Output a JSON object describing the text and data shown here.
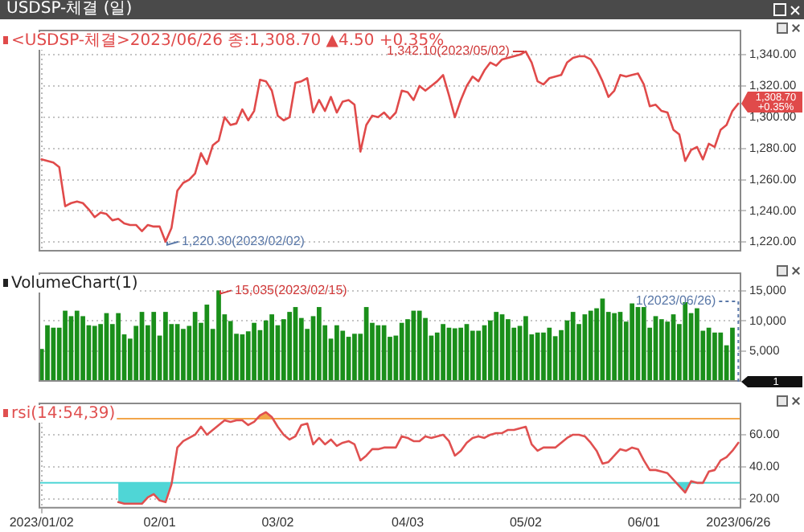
{
  "chart_data": [
    {
      "type": "line",
      "title": "USDSP-체결 (일)",
      "subtitle": "<USDSP-체결>2023/06/26 종:1,308.70 ▲4.50 +0.35%",
      "categories": [
        "2023/01/02",
        null,
        null,
        null,
        null,
        null,
        null,
        null,
        null,
        null,
        null,
        null,
        null,
        null,
        null,
        null,
        null,
        null,
        null,
        null,
        "02/01",
        null,
        null,
        null,
        null,
        null,
        null,
        null,
        null,
        null,
        null,
        null,
        null,
        null,
        null,
        null,
        null,
        null,
        null,
        null,
        "03/02",
        null,
        null,
        null,
        null,
        null,
        null,
        null,
        null,
        null,
        null,
        null,
        null,
        null,
        null,
        null,
        null,
        null,
        null,
        null,
        null,
        null,
        "04/03",
        null,
        null,
        null,
        null,
        null,
        null,
        null,
        null,
        null,
        null,
        null,
        null,
        null,
        null,
        null,
        null,
        null,
        null,
        null,
        "05/02",
        null,
        null,
        null,
        null,
        null,
        null,
        null,
        null,
        null,
        null,
        null,
        null,
        null,
        null,
        null,
        null,
        null,
        null,
        null,
        "06/01",
        null,
        null,
        null,
        null,
        null,
        null,
        null,
        null,
        null,
        null,
        null,
        null,
        null,
        null,
        null,
        "2023/06/26"
      ],
      "series": [
        {
          "color": "#e04a4a",
          "values": [
            1273,
            1272,
            1271,
            1268,
            1243,
            1245,
            1246,
            1245,
            1241,
            1236,
            1239,
            1238,
            1234,
            1235,
            1232,
            1231,
            1231,
            1227,
            1231,
            1230,
            1230,
            1220.3,
            1229,
            1253,
            1258,
            1260,
            1264,
            1277,
            1270,
            1282,
            1285,
            1300,
            1295,
            1296,
            1305,
            1298,
            1304,
            1324,
            1323,
            1317,
            1301,
            1298,
            1300,
            1322,
            1323,
            1325,
            1303,
            1311,
            1304,
            1313,
            1303,
            1310,
            1311,
            1308,
            1278,
            1295,
            1301,
            1300,
            1303,
            1299,
            1303,
            1317,
            1316,
            1311,
            1320,
            1317,
            1320,
            1323,
            1327,
            1314,
            1300,
            1311,
            1320,
            1326,
            1323,
            1330,
            1335,
            1333,
            1337,
            1338,
            1339,
            1340,
            1342.1,
            1335,
            1323,
            1321,
            1325,
            1326,
            1327,
            1335,
            1338,
            1339,
            1339,
            1337,
            1331,
            1323,
            1313,
            1317,
            1327,
            1326,
            1327,
            1328,
            1321,
            1307,
            1308,
            1304,
            1303,
            1292,
            1289,
            1272,
            1279,
            1281,
            1273,
            1283,
            1281,
            1292,
            1295,
            1304,
            1308.7
          ]
        }
      ],
      "ylim": [
        1214,
        1356
      ],
      "yticks": [
        {
          "value": 1220,
          "label": "1,220.00"
        },
        {
          "value": 1240,
          "label": "1,240.00"
        },
        {
          "value": 1260,
          "label": "1,260.00"
        },
        {
          "value": 1280,
          "label": "1,280.00"
        },
        {
          "value": 1300,
          "label": "1,300.00"
        },
        {
          "value": 1320,
          "label": "1,320.00"
        },
        {
          "value": 1340,
          "label": "1,340.00"
        }
      ],
      "grid": true,
      "tick_labels": "y",
      "marker": "none",
      "line_style": "solid",
      "annotations": [
        {
          "text": "1,342.10(2023/05/02)",
          "x": "05/02",
          "y": 1342.1
        },
        "1,220.30(2023/02/02)",
        "1,308.70 +0.35%"
      ]
    },
    {
      "type": "bar",
      "title": "VolumeChart(1)",
      "categories": [
        "2023/01/02",
        null,
        null,
        null,
        null,
        null,
        null,
        null,
        null,
        null,
        null,
        null,
        null,
        null,
        null,
        null,
        null,
        null,
        null,
        null,
        "02/01",
        null,
        null,
        null,
        null,
        null,
        null,
        null,
        null,
        null,
        null,
        null,
        null,
        null,
        null,
        null,
        null,
        null,
        null,
        null,
        "03/02",
        null,
        null,
        null,
        null,
        null,
        null,
        null,
        null,
        null,
        null,
        null,
        null,
        null,
        null,
        null,
        null,
        null,
        null,
        null,
        null,
        null,
        "04/03",
        null,
        null,
        null,
        null,
        null,
        null,
        null,
        null,
        null,
        null,
        null,
        null,
        null,
        null,
        null,
        null,
        null,
        null,
        null,
        "05/02",
        null,
        null,
        null,
        null,
        null,
        null,
        null,
        null,
        null,
        null,
        null,
        null,
        null,
        null,
        null,
        null,
        null,
        null,
        null,
        "06/01",
        null,
        null,
        null,
        null,
        null,
        null,
        null,
        null,
        null,
        null,
        null,
        null,
        null,
        null,
        null,
        "2023/06/26"
      ],
      "color": "#1a8f1a",
      "values": [
        5400,
        9300,
        8900,
        8900,
        11700,
        10800,
        11700,
        10800,
        9300,
        9200,
        9500,
        11300,
        9500,
        11300,
        7800,
        7100,
        9200,
        11500,
        9300,
        11500,
        7600,
        11500,
        9500,
        9500,
        8700,
        9200,
        11500,
        9700,
        12700,
        8700,
        15035,
        11100,
        10000,
        7900,
        7800,
        8300,
        9700,
        8500,
        10100,
        11100,
        9300,
        10300,
        11500,
        12300,
        10500,
        8700,
        10800,
        12300,
        9300,
        7100,
        9300,
        8400,
        7400,
        7900,
        7900,
        12300,
        9700,
        9300,
        9300,
        7400,
        7600,
        9700,
        10300,
        11700,
        11700,
        10500,
        7600,
        8100,
        9500,
        8900,
        8800,
        8900,
        9500,
        8400,
        8400,
        9300,
        10100,
        11500,
        11100,
        10300,
        8900,
        9200,
        10800,
        7800,
        8100,
        8100,
        8900,
        7500,
        8500,
        10100,
        11500,
        9500,
        11100,
        11700,
        12100,
        13700,
        11500,
        11300,
        11500,
        9900,
        12900,
        12300,
        12300,
        8900,
        10800,
        10300,
        9900,
        11100,
        9500,
        13100,
        11300,
        12100,
        8400,
        8900,
        8100,
        8100,
        6000,
        8900,
        1
      ],
      "ylim": [
        0,
        18000
      ],
      "yticks": [
        {
          "value": 5000,
          "label": "5,000"
        },
        {
          "value": 10000,
          "label": "10,000"
        },
        {
          "value": 15000,
          "label": "15,000"
        }
      ],
      "grid": true,
      "tick_labels": "y",
      "annotations": [
        "15,035(2023/02/15)",
        "1(2023/06/26)",
        "1"
      ]
    },
    {
      "type": "line",
      "title": "rsi(14:54,39)",
      "categories": [
        "2023/01/02",
        null,
        null,
        null,
        null,
        null,
        null,
        null,
        null,
        null,
        null,
        null,
        null,
        null,
        null,
        null,
        null,
        null,
        null,
        null,
        "02/01",
        null,
        null,
        null,
        null,
        null,
        null,
        null,
        null,
        null,
        null,
        null,
        null,
        null,
        null,
        null,
        null,
        null,
        null,
        null,
        "03/02",
        null,
        null,
        null,
        null,
        null,
        null,
        null,
        null,
        null,
        null,
        null,
        null,
        null,
        null,
        null,
        null,
        null,
        null,
        null,
        null,
        null,
        "04/03",
        null,
        null,
        null,
        null,
        null,
        null,
        null,
        null,
        null,
        null,
        null,
        null,
        null,
        null,
        null,
        null,
        null,
        null,
        null,
        "05/02",
        null,
        null,
        null,
        null,
        null,
        null,
        null,
        null,
        null,
        null,
        null,
        null,
        null,
        null,
        null,
        null,
        null,
        null,
        null,
        "06/01",
        null,
        null,
        null,
        null,
        null,
        null,
        null,
        null,
        null,
        null,
        null,
        null,
        null,
        null,
        null,
        "2023/06/26"
      ],
      "series": [
        {
          "color": "#e05050",
          "values": [
            null,
            null,
            null,
            null,
            null,
            null,
            null,
            null,
            null,
            null,
            null,
            null,
            null,
            18,
            17,
            17,
            17,
            17,
            21,
            23,
            19,
            18,
            29,
            52,
            56,
            58,
            60,
            65,
            60,
            63,
            66,
            69,
            68,
            69,
            69,
            66,
            68,
            72,
            74,
            71,
            65,
            60,
            57,
            59,
            66,
            67,
            54,
            58,
            54,
            57,
            53,
            55,
            56,
            54,
            44,
            47,
            51,
            51,
            52,
            52,
            52,
            59,
            58,
            56,
            56,
            59,
            58,
            59,
            60,
            56,
            47,
            50,
            55,
            58,
            59,
            58,
            60,
            61,
            61,
            63,
            63,
            64,
            65,
            54,
            50,
            52,
            52,
            52,
            55,
            58,
            60,
            60,
            59,
            55,
            50,
            42,
            43,
            47,
            51,
            50,
            52,
            51,
            44,
            38,
            38,
            37,
            36,
            32,
            28,
            24,
            31,
            30,
            30,
            37,
            38,
            44,
            46,
            50,
            55
          ]
        }
      ],
      "ylim": [
        14,
        80
      ],
      "yticks": [
        {
          "value": 20,
          "label": "20.00"
        },
        {
          "value": 40,
          "label": "40.00"
        },
        {
          "value": 60,
          "label": "60.00"
        }
      ],
      "ref_lines": [
        {
          "axis": "y",
          "value": 70,
          "color": "#f2a64a"
        },
        {
          "axis": "y",
          "value": 30,
          "color": "#4fd6d6"
        }
      ],
      "grid": true,
      "marker": "none",
      "line_style": "solid"
    }
  ]
}
